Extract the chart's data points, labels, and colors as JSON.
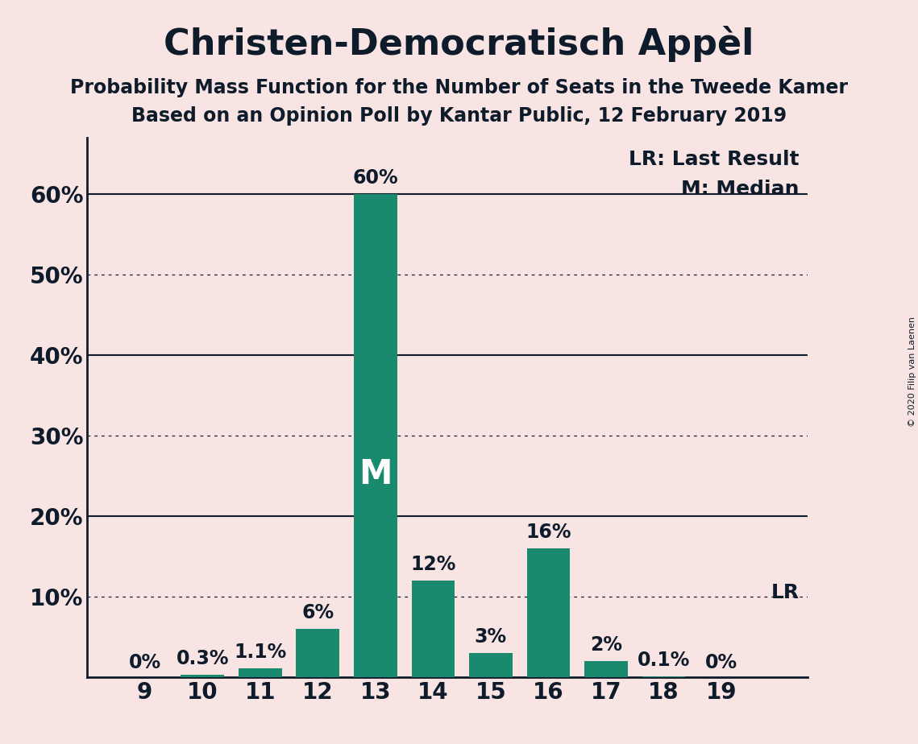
{
  "title": "Christen-Democratisch Appèl",
  "subtitle1": "Probability Mass Function for the Number of Seats in the Tweede Kamer",
  "subtitle2": "Based on an Opinion Poll by Kantar Public, 12 February 2019",
  "copyright": "© 2020 Filip van Laenen",
  "seats": [
    9,
    10,
    11,
    12,
    13,
    14,
    15,
    16,
    17,
    18,
    19
  ],
  "probabilities": [
    0.0,
    0.3,
    1.1,
    6.0,
    60.0,
    12.0,
    3.0,
    16.0,
    2.0,
    0.1,
    0.0
  ],
  "bar_color": "#1a8a6e",
  "background_color": "#f9e4e4",
  "median_seat": 13,
  "lr_seat": 19,
  "lr_label": "LR",
  "median_label": "M",
  "legend_lr": "LR: Last Result",
  "legend_m": "M: Median",
  "ytick_labels": [
    "",
    "10%",
    "20%",
    "30%",
    "40%",
    "50%",
    "60%"
  ],
  "ytick_values": [
    0,
    10,
    20,
    30,
    40,
    50,
    60
  ],
  "solid_lines": [
    20,
    40,
    60
  ],
  "dotted_lines": [
    10,
    30,
    50
  ],
  "ylim": [
    0,
    67
  ],
  "bar_labels": [
    "0%",
    "0.3%",
    "1.1%",
    "6%",
    "60%",
    "12%",
    "3%",
    "16%",
    "2%",
    "0.1%",
    "0%"
  ],
  "title_fontsize": 32,
  "subtitle_fontsize": 17,
  "tick_fontsize": 20,
  "bar_label_fontsize": 17,
  "legend_fontsize": 18,
  "median_fontsize": 30,
  "lr_side_fontsize": 18,
  "text_color": "#0d1b2a",
  "bar_width": 0.75
}
